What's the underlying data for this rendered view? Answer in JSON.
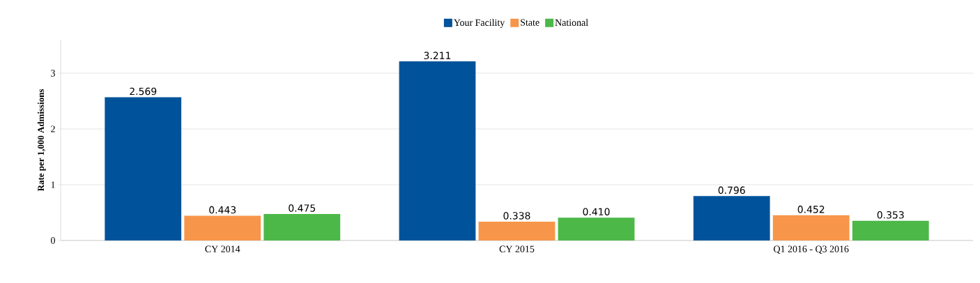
{
  "chart_data": {
    "type": "bar",
    "ylabel": "Rate per 1,000 Admissions",
    "categories": [
      "CY 2014",
      "CY 2015",
      "Q1 2016 - Q3 2016"
    ],
    "series": [
      {
        "name": "Your Facility",
        "color": "#00539b",
        "values": [
          2.569,
          3.211,
          0.796
        ],
        "value_labels": [
          "2.569",
          "3.211",
          "0.796"
        ]
      },
      {
        "name": "State",
        "color": "#f7964a",
        "values": [
          0.443,
          0.338,
          0.452
        ],
        "value_labels": [
          "0.443",
          "0.338",
          "0.452"
        ]
      },
      {
        "name": "National",
        "color": "#4cb848",
        "values": [
          0.475,
          0.41,
          0.353
        ],
        "value_labels": [
          "0.475",
          "0.410",
          "0.353"
        ]
      }
    ],
    "ylim": [
      0,
      3.6
    ],
    "yticks": [
      0,
      1,
      2,
      3
    ],
    "grid": "y",
    "legend": "top"
  }
}
